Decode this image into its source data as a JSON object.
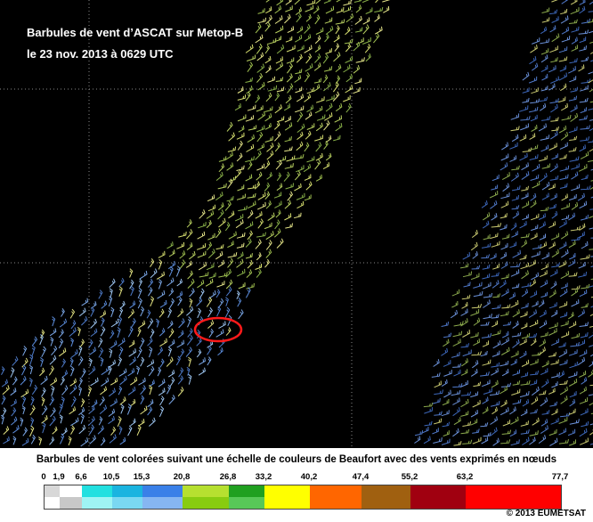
{
  "map": {
    "title_line1": "Barbules de vent d’ASCAT sur Metop-B",
    "title_line2": "le 23 nov. 2013 à 0629 UTC",
    "highlight": "red-ellipse-marker"
  },
  "legend": {
    "title": "Barbules de vent colorées suivant une échelle de couleurs de Beaufort avec des vents exprimés en nœuds",
    "ticks": [
      "0",
      "1,9",
      "6,6",
      "10,5",
      "15,3",
      "20,8",
      "26,8",
      "33,2",
      "40,2",
      "47,4",
      "55,2",
      "63,2",
      "77,7"
    ],
    "colors": [
      {
        "top": "#d8d8d8",
        "bottom": "#ffffff"
      },
      {
        "top": "#ffffff",
        "bottom": "#c8c8c8"
      },
      {
        "top": "#22e0e0",
        "bottom": "#9ff4f4"
      },
      {
        "top": "#1ab4e0",
        "bottom": "#7ad8f2"
      },
      {
        "top": "#3a80e8",
        "bottom": "#86b6f2"
      },
      {
        "top": "#b6e030",
        "bottom": "#88cc10"
      },
      {
        "top": "#20a020",
        "bottom": "#58c858"
      },
      {
        "top": "#ffff00",
        "bottom": "#ffff00"
      },
      {
        "top": "#ff6600",
        "bottom": "#ff6600"
      },
      {
        "top": "#a06010",
        "bottom": "#a06010"
      },
      {
        "top": "#a00010",
        "bottom": "#a00010"
      },
      {
        "top": "#ff0000",
        "bottom": "#ff0000"
      }
    ]
  },
  "copyright": "© 2013 EUMETSAT"
}
